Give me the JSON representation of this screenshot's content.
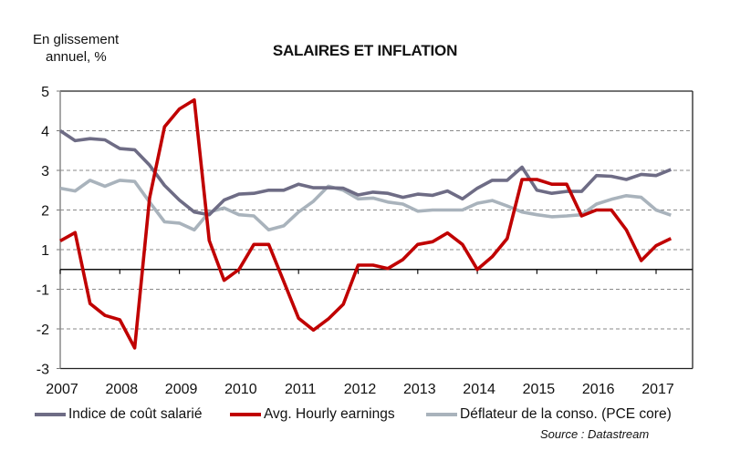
{
  "chart_data": {
    "type": "line",
    "title": "SALAIRES ET INFLATION",
    "ylabel_lines": [
      "En glissement",
      "annuel, %"
    ],
    "xlabel": "",
    "frequency": "quarterly",
    "x_start": "2007 Q1",
    "x_end": "2017 Q2",
    "x_tick_labels": [
      "2007",
      "2008",
      "2009",
      "2010",
      "2011",
      "2012",
      "2013",
      "2014",
      "2015",
      "2016",
      "2017"
    ],
    "y_tick_labels": [
      "5",
      "4",
      "3",
      "2",
      "1",
      "-1",
      "-2",
      "-3"
    ],
    "ylim": [
      -3,
      5
    ],
    "grid": "horizontal dashed",
    "legend_position": "bottom",
    "series": [
      {
        "name": "Indice de coût salarié",
        "color": "#6e6c85",
        "values": [
          4.0,
          3.75,
          3.8,
          3.77,
          3.55,
          3.52,
          3.13,
          2.62,
          2.25,
          1.95,
          1.88,
          2.25,
          2.4,
          2.42,
          2.5,
          2.5,
          2.65,
          2.56,
          2.56,
          2.55,
          2.38,
          2.45,
          2.42,
          2.32,
          2.4,
          2.37,
          2.48,
          2.28,
          2.55,
          2.75,
          2.75,
          3.08,
          2.5,
          2.42,
          2.47,
          2.47,
          2.87,
          2.85,
          2.77,
          2.9,
          2.87,
          3.02
        ]
      },
      {
        "name": "Avg. Hourly earnings",
        "color": "#c00000",
        "values": [
          1.22,
          1.43,
          -1.36,
          -1.66,
          -1.77,
          -2.48,
          2.3,
          4.1,
          4.55,
          4.78,
          1.23,
          -0.55,
          0.0,
          1.13,
          1.13,
          -0.6,
          -1.73,
          -2.03,
          -1.75,
          -1.38,
          0.22,
          0.22,
          0.05,
          0.5,
          1.13,
          1.2,
          1.42,
          1.13,
          0.0,
          0.64,
          1.28,
          2.77,
          2.77,
          2.65,
          2.65,
          1.85,
          2.0,
          2.0,
          1.5,
          0.45,
          1.1,
          1.28
        ]
      },
      {
        "name": "Déflateur de la conso. (PCE core)",
        "color": "#a9b3bc",
        "values": [
          2.55,
          2.48,
          2.75,
          2.6,
          2.75,
          2.72,
          2.2,
          1.7,
          1.67,
          1.5,
          1.95,
          2.05,
          1.88,
          1.85,
          1.5,
          1.6,
          1.95,
          2.22,
          2.6,
          2.5,
          2.28,
          2.3,
          2.2,
          2.15,
          1.97,
          2.0,
          2.0,
          2.0,
          2.17,
          2.24,
          2.1,
          1.95,
          1.88,
          1.83,
          1.85,
          1.88,
          2.15,
          2.27,
          2.36,
          2.32,
          2.0,
          1.87
        ]
      }
    ],
    "source": "Source : Datastream"
  }
}
